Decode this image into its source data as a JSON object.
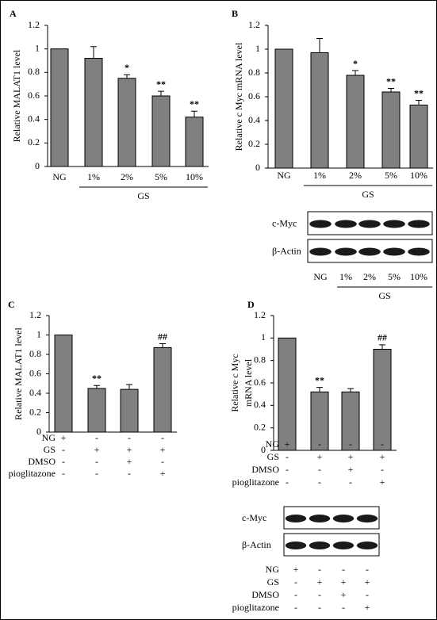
{
  "chart_data": [
    {
      "type": "bar",
      "panel": "A",
      "ylabel": "Relative MALAT1 level",
      "categories": [
        "NG",
        "1%",
        "2%",
        "5%",
        "10%"
      ],
      "values": [
        1,
        0.92,
        0.75,
        0.6,
        0.42
      ],
      "errors": [
        null,
        0.1,
        0.03,
        0.04,
        0.05
      ],
      "annotations": [
        null,
        null,
        "*",
        "**",
        "**"
      ],
      "group": "GS",
      "color": "#808080",
      "ylim": [
        0,
        1.2
      ],
      "yticks": [
        0,
        0.2,
        0.4,
        0.6,
        0.8,
        1,
        1.2
      ]
    },
    {
      "type": "bar",
      "panel": "B",
      "ylabel": "Relative c Myc mRNA level",
      "categories": [
        "NG",
        "1%",
        "2%",
        "5%",
        "10%"
      ],
      "values": [
        1,
        0.97,
        0.78,
        0.64,
        0.53
      ],
      "errors": [
        null,
        0.12,
        0.04,
        0.03,
        0.04
      ],
      "annotations": [
        null,
        null,
        "*",
        "**",
        "**"
      ],
      "group": "GS",
      "color": "#808080",
      "ylim": [
        0,
        1.2
      ],
      "yticks": [
        0,
        0.2,
        0.4,
        0.6,
        0.8,
        1,
        1.2
      ],
      "blot": {
        "rows": [
          "c-Myc",
          "β-Actin"
        ],
        "lanes": [
          "NG",
          "1%",
          "2%",
          "5%",
          "10%"
        ],
        "group": "GS"
      }
    },
    {
      "type": "bar",
      "panel": "C",
      "ylabel": "Relative MALAT1 level",
      "categories": [
        null,
        null,
        null,
        null
      ],
      "values": [
        1,
        0.45,
        0.44,
        0.87
      ],
      "errors": [
        null,
        0.03,
        0.05,
        0.04
      ],
      "annotations": [
        null,
        "**",
        null,
        "##"
      ],
      "color": "#808080",
      "ylim": [
        0,
        1.2
      ],
      "yticks": [
        0,
        0.2,
        0.4,
        0.6,
        0.8,
        1,
        1.2
      ],
      "treatments": [
        {
          "name": "NG",
          "signs": [
            "+",
            "-",
            "-",
            "-"
          ]
        },
        {
          "name": "GS",
          "signs": [
            "-",
            "+",
            "+",
            "+"
          ]
        },
        {
          "name": "DMSO",
          "signs": [
            "-",
            "-",
            "+",
            "-"
          ]
        },
        {
          "name": "pioglitazone",
          "signs": [
            "-",
            "-",
            "-",
            "+"
          ]
        }
      ]
    },
    {
      "type": "bar",
      "panel": "D",
      "ylabel": [
        "Relative c Myc",
        "mRNA level"
      ],
      "categories": [
        null,
        null,
        null,
        null
      ],
      "values": [
        1,
        0.52,
        0.52,
        0.9
      ],
      "errors": [
        null,
        0.04,
        0.03,
        0.04
      ],
      "annotations": [
        null,
        "**",
        null,
        "##"
      ],
      "color": "#808080",
      "ylim": [
        0,
        1.2
      ],
      "yticks": [
        0,
        0.2,
        0.4,
        0.6,
        0.8,
        1,
        1.2
      ],
      "treatments": [
        {
          "name": "NG",
          "signs": [
            "+",
            "-",
            "-",
            "-"
          ]
        },
        {
          "name": "GS",
          "signs": [
            "-",
            "+",
            "+",
            "+"
          ]
        },
        {
          "name": "DMSO",
          "signs": [
            "-",
            "-",
            "+",
            "-"
          ]
        },
        {
          "name": "pioglitazone",
          "signs": [
            "-",
            "-",
            "-",
            "+"
          ]
        }
      ],
      "blot": {
        "rows": [
          "c-Myc",
          "β-Actin"
        ],
        "treatments": [
          {
            "name": "NG",
            "signs": [
              "+",
              "-",
              "-",
              "-"
            ]
          },
          {
            "name": "GS",
            "signs": [
              "-",
              "+",
              "+",
              "+"
            ]
          },
          {
            "name": "DMSO",
            "signs": [
              "-",
              "-",
              "+",
              "-"
            ]
          },
          {
            "name": "pioglitazone",
            "signs": [
              "-",
              "-",
              "-",
              "+"
            ]
          }
        ]
      }
    }
  ]
}
